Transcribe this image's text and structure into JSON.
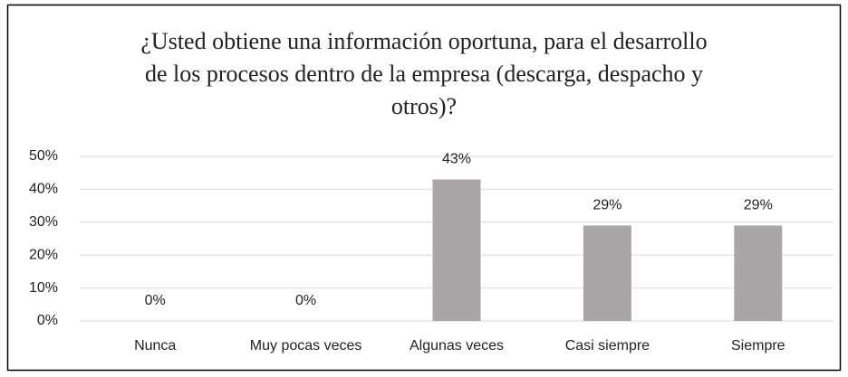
{
  "chart_data": {
    "type": "bar",
    "title": "¿Usted obtiene una información oportuna, para el desarrollo de los procesos dentro de la empresa (descarga, despacho y otros)?",
    "categories": [
      "Nunca",
      "Muy pocas veces",
      "Algunas veces",
      "Casi siempre",
      "Siempre"
    ],
    "values": [
      0,
      0,
      43,
      29,
      29
    ],
    "value_labels": [
      "0%",
      "0%",
      "43%",
      "29%",
      "29%"
    ],
    "color": "#aaa6a5",
    "ylim": [
      0,
      50
    ],
    "yticks": [
      {
        "value": 0,
        "label": "0%"
      },
      {
        "value": 10,
        "label": "10%"
      },
      {
        "value": 20,
        "label": "20%"
      },
      {
        "value": 30,
        "label": "30%"
      },
      {
        "value": 40,
        "label": "40%"
      },
      {
        "value": 50,
        "label": "50%"
      }
    ],
    "grid": true
  }
}
